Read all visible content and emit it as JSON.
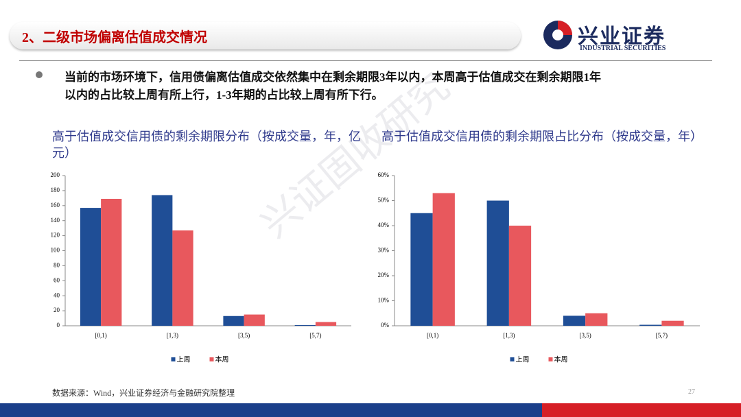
{
  "header": {
    "title": "2、二级市场偏离估值成交情况",
    "logo": "兴业证券",
    "logo_en": "INDUSTRIAL SECURITIES"
  },
  "bullet": {
    "lines": [
      "当前的市场环境下，信用债偏离估值成交依然集中在剩余期限3年以内，本周高于估值成交在剩余期限1年",
      "以内的占比较上周有所上行，1-3年期的占比较上周有所下行。"
    ]
  },
  "watermark": "兴证固收研究",
  "chart_data": [
    {
      "type": "bar",
      "title": "高于估值成交信用债的剩余期限分布（按成交量，年，亿元）",
      "categories": [
        "[0,1)",
        "[1,3)",
        "[3,5)",
        "[5,7)"
      ],
      "series": [
        {
          "name": "上周",
          "color": "#1f4e96",
          "values": [
            157,
            174,
            13,
            1
          ]
        },
        {
          "name": "本周",
          "color": "#e8585d",
          "values": [
            169,
            127,
            15,
            5
          ]
        }
      ],
      "ylim": [
        0,
        200
      ],
      "yticks": [
        0,
        20,
        40,
        60,
        80,
        100,
        120,
        140,
        160,
        180,
        200
      ]
    },
    {
      "type": "bar",
      "title": "高于估值成交信用债的剩余期限占比分布（按成交量，年）",
      "categories": [
        "[0,1)",
        "[1,3)",
        "[3,5)",
        "[5,7)"
      ],
      "series": [
        {
          "name": "上周",
          "color": "#1f4e96",
          "values": [
            45,
            50,
            4,
            0.4
          ]
        },
        {
          "name": "本周",
          "color": "#e8585d",
          "values": [
            53,
            40,
            5,
            2
          ]
        }
      ],
      "ylim": [
        0,
        60
      ],
      "yticks": [
        {
          "value": 0,
          "label": "0%"
        },
        {
          "value": 10,
          "label": "10%"
        },
        {
          "value": 20,
          "label": "20%"
        },
        {
          "value": 30,
          "label": "30%"
        },
        {
          "value": 40,
          "label": "40%"
        },
        {
          "value": 50,
          "label": "50%"
        },
        {
          "value": 60,
          "label": "60%"
        }
      ]
    }
  ],
  "footer": {
    "source": "数据来源：Wind，兴业证券经济与金融研究院整理",
    "page": "27"
  }
}
